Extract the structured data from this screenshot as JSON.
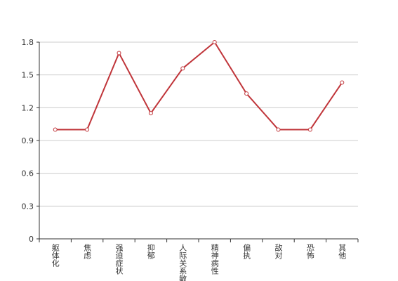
{
  "chart_data": {
    "type": "line",
    "categories": [
      "躯体化",
      "焦虑",
      "强迫症状",
      "抑郁",
      "人际关系敏感",
      "精神病性",
      "偏执",
      "敌对",
      "恐怖",
      "其他"
    ],
    "series": [
      {
        "color": "#c0353a",
        "values": [
          1.0,
          1.0,
          1.7,
          1.15,
          1.56,
          1.8,
          1.33,
          1.0,
          1.0,
          1.43
        ]
      }
    ],
    "ylim": [
      0,
      1.8
    ],
    "yticks": [
      0,
      0.3,
      0.6,
      0.9,
      1.2,
      1.5,
      1.8
    ],
    "grid": true
  }
}
